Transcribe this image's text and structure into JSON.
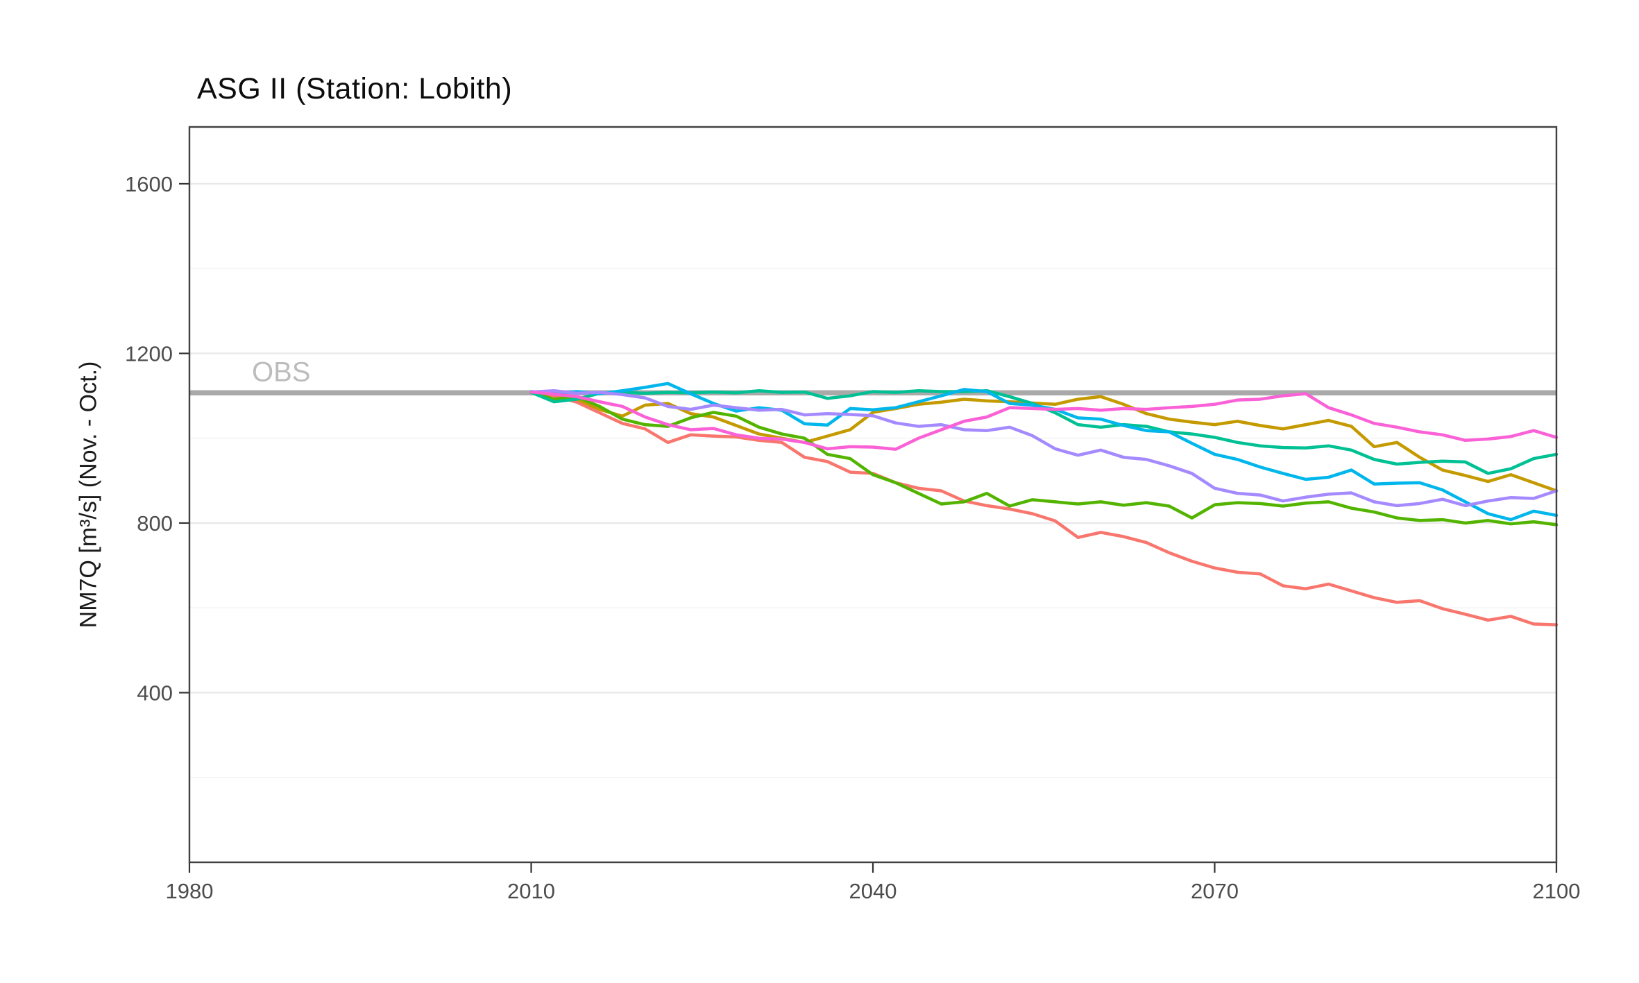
{
  "title": "ASG II (Station: Lobith)",
  "y_axis": {
    "title": "NM7Q [m³/s] (Nov. - Oct.)",
    "ticks": [
      400,
      800,
      1200,
      1600
    ],
    "minor_gridlines": [
      200,
      600,
      1000,
      1400
    ],
    "tick_color": "#4d4d4d"
  },
  "x_axis": {
    "ticks": [
      1980,
      2010,
      2040,
      2070,
      2100
    ],
    "tick_color": "#4d4d4d"
  },
  "obs": {
    "label": "OBS",
    "value": 1107,
    "line_color": "#a9a9a9",
    "label_color": "#bcbcbc"
  },
  "styles": {
    "panel_border_color": "#404040",
    "grid_major_color": "#e9e9e9",
    "grid_minor_color": "#f4f4f4"
  },
  "chart_data": {
    "type": "line",
    "title": "ASG II (Station: Lobith)",
    "xlabel": "",
    "ylabel": "NM7Q [m³/s] (Nov. - Oct.)",
    "xlim": [
      1980,
      2100
    ],
    "ylim": [
      0,
      1734
    ],
    "grid": "horizontal-only",
    "legend": "none",
    "reference_line": {
      "label": "OBS",
      "value": 1107
    },
    "x": [
      2010,
      2012,
      2014,
      2016,
      2018,
      2020,
      2022,
      2024,
      2026,
      2028,
      2030,
      2032,
      2034,
      2036,
      2038,
      2040,
      2042,
      2044,
      2046,
      2048,
      2050,
      2052,
      2054,
      2056,
      2058,
      2060,
      2062,
      2064,
      2066,
      2068,
      2070,
      2072,
      2074,
      2076,
      2078,
      2080,
      2082,
      2084,
      2086,
      2088,
      2090,
      2092,
      2094,
      2096,
      2098,
      2100
    ],
    "series": [
      {
        "name": "salmon",
        "color": "#F8766D",
        "values": [
          1108,
          1100,
          1085,
          1060,
          1035,
          1022,
          990,
          1008,
          1005,
          1003,
          995,
          990,
          955,
          945,
          920,
          917,
          895,
          882,
          876,
          852,
          841,
          833,
          822,
          805,
          766,
          778,
          768,
          754,
          730,
          710,
          694,
          684,
          680,
          652,
          645,
          656,
          640,
          624,
          613,
          617,
          598,
          585,
          571,
          580,
          562,
          560
        ]
      },
      {
        "name": "gold",
        "color": "#C49A00",
        "values": [
          1108,
          1090,
          1092,
          1068,
          1052,
          1078,
          1082,
          1058,
          1050,
          1030,
          1010,
          1000,
          990,
          1005,
          1020,
          1061,
          1070,
          1080,
          1085,
          1092,
          1088,
          1086,
          1083,
          1080,
          1092,
          1098,
          1080,
          1058,
          1045,
          1038,
          1032,
          1040,
          1030,
          1022,
          1032,
          1042,
          1028,
          980,
          990,
          955,
          925,
          912,
          898,
          914,
          895,
          876
        ]
      },
      {
        "name": "green",
        "color": "#53B400",
        "values": [
          1108,
          1092,
          1098,
          1075,
          1045,
          1032,
          1028,
          1048,
          1061,
          1052,
          1026,
          1010,
          1000,
          962,
          952,
          914,
          895,
          870,
          845,
          850,
          870,
          840,
          855,
          850,
          845,
          850,
          842,
          848,
          840,
          812,
          843,
          848,
          846,
          840,
          847,
          850,
          835,
          826,
          812,
          806,
          808,
          800,
          806,
          798,
          803,
          796
        ]
      },
      {
        "name": "teal",
        "color": "#00C094",
        "values": [
          1108,
          1086,
          1092,
          1106,
          1108,
          1106,
          1108,
          1107,
          1109,
          1107,
          1112,
          1108,
          1109,
          1094,
          1100,
          1110,
          1108,
          1112,
          1110,
          1110,
          1112,
          1098,
          1082,
          1060,
          1032,
          1026,
          1032,
          1028,
          1015,
          1010,
          1002,
          990,
          982,
          978,
          977,
          982,
          972,
          950,
          939,
          943,
          946,
          944,
          917,
          928,
          952,
          962
        ]
      },
      {
        "name": "cyan",
        "color": "#00B6EB",
        "values": [
          1110,
          1106,
          1110,
          1105,
          1112,
          1120,
          1129,
          1105,
          1082,
          1064,
          1072,
          1066,
          1034,
          1031,
          1070,
          1067,
          1072,
          1086,
          1100,
          1115,
          1110,
          1082,
          1078,
          1068,
          1048,
          1045,
          1030,
          1018,
          1015,
          988,
          962,
          950,
          932,
          917,
          903,
          908,
          925,
          892,
          894,
          895,
          878,
          850,
          822,
          808,
          828,
          818
        ]
      },
      {
        "name": "purple",
        "color": "#A58AFF",
        "values": [
          1109,
          1112,
          1106,
          1108,
          1103,
          1095,
          1075,
          1068,
          1078,
          1072,
          1066,
          1068,
          1055,
          1058,
          1056,
          1053,
          1036,
          1028,
          1032,
          1020,
          1018,
          1026,
          1006,
          975,
          960,
          972,
          955,
          950,
          935,
          917,
          882,
          870,
          866,
          852,
          861,
          868,
          871,
          850,
          841,
          846,
          856,
          841,
          852,
          860,
          858,
          876
        ]
      },
      {
        "name": "magenta",
        "color": "#FB61D7",
        "values": [
          1109,
          1104,
          1098,
          1086,
          1075,
          1050,
          1032,
          1020,
          1023,
          1008,
          1000,
          998,
          990,
          975,
          980,
          979,
          974,
          1000,
          1020,
          1040,
          1050,
          1072,
          1070,
          1068,
          1070,
          1066,
          1070,
          1068,
          1072,
          1075,
          1080,
          1090,
          1092,
          1100,
          1105,
          1072,
          1055,
          1035,
          1026,
          1015,
          1008,
          995,
          998,
          1004,
          1018,
          1002
        ]
      }
    ]
  }
}
